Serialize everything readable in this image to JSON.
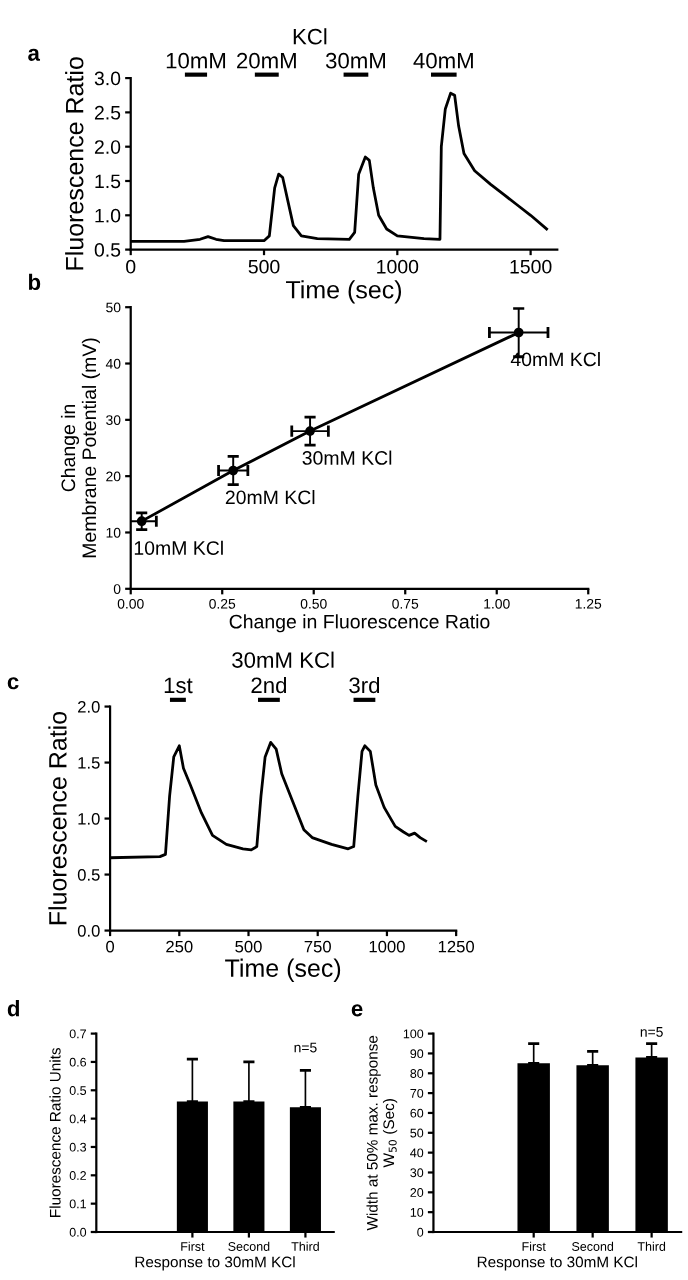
{
  "chart_data": [
    {
      "type": "line",
      "xlabel": "Time (sec)",
      "ylabel": "Fluorescence Ratio",
      "xlim": [
        0,
        1600
      ],
      "ylim": [
        0.5,
        3.0
      ],
      "xticks": [
        0,
        500,
        1000,
        1500
      ],
      "yticks": [
        {
          "value": 0.5,
          "label": "0.5"
        },
        {
          "value": 1.0,
          "label": "1.0"
        },
        {
          "value": 1.5,
          "label": "1.5"
        },
        {
          "value": 2.0,
          "label": "2.0"
        },
        {
          "value": 2.5,
          "label": "2.5"
        },
        {
          "value": 3.0,
          "label": "3.0"
        }
      ],
      "grid": false,
      "legend": false,
      "marker": "none",
      "line_style": "solid",
      "annotations": [
        "a",
        "KCl",
        "10mM",
        "20mM",
        "30mM",
        "40mM"
      ],
      "series": [
        {
          "color": "#000000",
          "x": [
            0,
            200,
            260,
            290,
            320,
            350,
            500,
            520,
            540,
            555,
            570,
            590,
            610,
            640,
            700,
            820,
            840,
            855,
            880,
            895,
            910,
            930,
            960,
            1000,
            1100,
            1160,
            1165,
            1180,
            1200,
            1215,
            1230,
            1250,
            1290,
            1350,
            1400,
            1450,
            1500,
            1560
          ],
          "values": [
            0.62,
            0.62,
            0.65,
            0.69,
            0.65,
            0.63,
            0.63,
            0.7,
            1.4,
            1.6,
            1.55,
            1.2,
            0.85,
            0.7,
            0.66,
            0.65,
            0.75,
            1.6,
            1.85,
            1.8,
            1.4,
            1.0,
            0.8,
            0.7,
            0.66,
            0.65,
            2.0,
            2.55,
            2.78,
            2.75,
            2.3,
            1.9,
            1.65,
            1.45,
            1.3,
            1.15,
            1.0,
            0.8
          ]
        }
      ]
    },
    {
      "type": "line",
      "xlabel": "Change in Fluorescence Ratio",
      "ylabel": "Change in\nMembrane Potential (mV)",
      "xlim": [
        0,
        1.25
      ],
      "ylim": [
        0,
        50
      ],
      "xticks": [
        {
          "value": 0,
          "label": "0.00"
        },
        {
          "value": 0.25,
          "label": "0.25"
        },
        {
          "value": 0.5,
          "label": "0.50"
        },
        {
          "value": 0.75,
          "label": "0.75"
        },
        {
          "value": 1.0,
          "label": "1.00"
        },
        {
          "value": 1.25,
          "label": "1.25"
        }
      ],
      "yticks": [
        0,
        10,
        20,
        30,
        40,
        50
      ],
      "grid": false,
      "legend": false,
      "marker": "circle",
      "line_style": "solid",
      "annotations": [
        "b",
        {
          "text": "10mM KCl",
          "x": 0.03,
          "y": 12
        },
        {
          "text": "20mM KCl",
          "x": 0.28,
          "y": 21
        },
        {
          "text": "30mM KCl",
          "x": 0.49,
          "y": 28
        },
        {
          "text": "40mM KCl",
          "x": 1.06,
          "y": 45.5
        }
      ],
      "series": [
        {
          "color": "#000000",
          "x": [
            0.03,
            0.28,
            0.49,
            1.06
          ],
          "values": [
            12,
            21,
            28,
            45.5
          ],
          "errors": [
            1.5,
            2.5,
            2.5,
            4.3
          ],
          "xerrors": [
            0.04,
            0.04,
            0.05,
            0.08
          ]
        }
      ]
    },
    {
      "type": "line",
      "title": "30mM KCl",
      "xlabel": "Time (sec)",
      "ylabel": "Fluorescence Ratio",
      "xlim": [
        0,
        1250
      ],
      "ylim": [
        0,
        2.0
      ],
      "xticks": [
        0,
        250,
        500,
        750,
        1000,
        1250
      ],
      "yticks": [
        {
          "value": 0,
          "label": "0.0"
        },
        {
          "value": 0.5,
          "label": "0.5"
        },
        {
          "value": 1.0,
          "label": "1.0"
        },
        {
          "value": 1.5,
          "label": "1.5"
        },
        {
          "value": 2.0,
          "label": "2.0"
        }
      ],
      "grid": false,
      "legend": false,
      "marker": "none",
      "line_style": "solid",
      "annotations": [
        "c",
        "1st",
        "2nd",
        "3rd"
      ],
      "series": [
        {
          "color": "#000000",
          "x": [
            0,
            180,
            200,
            215,
            230,
            250,
            265,
            290,
            330,
            370,
            420,
            480,
            510,
            530,
            545,
            560,
            580,
            600,
            620,
            660,
            700,
            730,
            800,
            860,
            880,
            895,
            910,
            920,
            940,
            960,
            990,
            1030,
            1060,
            1080,
            1100,
            1120,
            1140
          ],
          "values": [
            0.65,
            0.66,
            0.68,
            1.2,
            1.55,
            1.65,
            1.45,
            1.3,
            1.05,
            0.85,
            0.77,
            0.73,
            0.72,
            0.75,
            1.2,
            1.55,
            1.68,
            1.62,
            1.4,
            1.15,
            0.9,
            0.83,
            0.77,
            0.73,
            0.75,
            1.2,
            1.6,
            1.65,
            1.6,
            1.3,
            1.1,
            0.93,
            0.88,
            0.85,
            0.87,
            0.83,
            0.8
          ]
        }
      ]
    },
    {
      "type": "bar",
      "xlabel": "Response to 30mM KCl",
      "ylabel": "Fluorescence Ratio Units",
      "categories": [
        "First",
        "Second",
        "Third"
      ],
      "ylim": [
        0,
        0.7
      ],
      "yticks": [
        {
          "value": 0,
          "label": "0.0"
        },
        {
          "value": 0.1,
          "label": "0.1"
        },
        {
          "value": 0.2,
          "label": "0.2"
        },
        {
          "value": 0.3,
          "label": "0.3"
        },
        {
          "value": 0.4,
          "label": "0.4"
        },
        {
          "value": 0.5,
          "label": "0.5"
        },
        {
          "value": 0.6,
          "label": "0.6"
        },
        {
          "value": 0.7,
          "label": "0.7"
        }
      ],
      "grid": false,
      "legend": false,
      "annotations": [
        "d",
        "n=5"
      ],
      "series": [
        {
          "color": "#000000",
          "values": [
            0.46,
            0.46,
            0.44
          ],
          "errors": [
            [
              0.46,
              0.61
            ],
            [
              0.46,
              0.6
            ],
            [
              0.44,
              0.57
            ]
          ]
        }
      ]
    },
    {
      "type": "bar",
      "xlabel": "Response to 30mM KCl",
      "ylabel": "Width at 50% max. response\nW$_{50}$ (Sec)",
      "categories": [
        "First",
        "Second",
        "Third"
      ],
      "ylim": [
        0,
        100
      ],
      "yticks": [
        0,
        10,
        20,
        30,
        40,
        50,
        60,
        70,
        80,
        90,
        100
      ],
      "grid": false,
      "legend": false,
      "annotations": [
        "e",
        "n=5"
      ],
      "series": [
        {
          "color": "#000000",
          "values": [
            85,
            84,
            88
          ],
          "errors": [
            [
              85,
              95
            ],
            [
              84,
              91
            ],
            [
              88,
              95
            ]
          ]
        }
      ]
    }
  ]
}
